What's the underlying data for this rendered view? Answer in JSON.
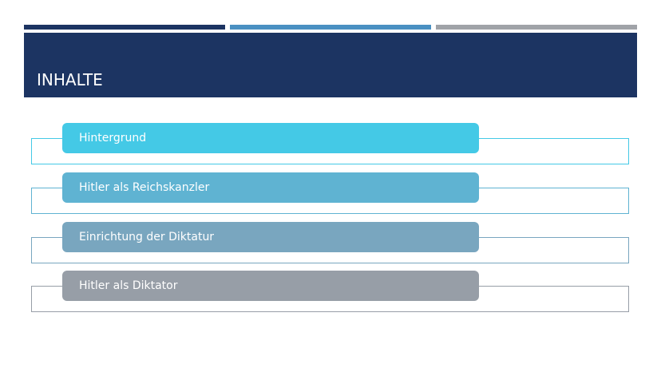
{
  "header": {
    "title": "INHALTE"
  },
  "items": [
    {
      "label": "Hintergrund"
    },
    {
      "label": "Hitler als Reichskanzler"
    },
    {
      "label": "Einrichtung der Diktatur"
    },
    {
      "label": "Hitler als Diktator"
    }
  ]
}
